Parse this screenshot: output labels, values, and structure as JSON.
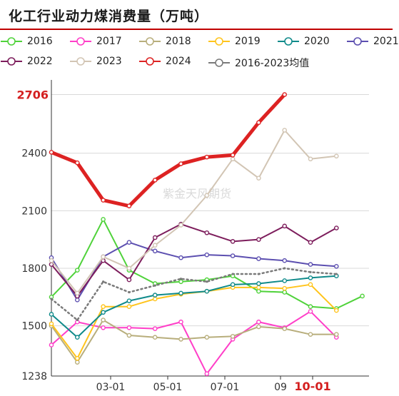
{
  "title": "化工行业动力煤消费量（万吨）",
  "watermark": "紫金天风期货",
  "chart_data": {
    "type": "line",
    "title": "化工行业动力煤消费量（万吨）",
    "ylim": [
      1238,
      2760
    ],
    "y_ticks": [
      1238,
      1500,
      1800,
      2100,
      2400
    ],
    "y_highlight": 2706,
    "x_ticks": [
      "03-01",
      "05-01",
      "07-01",
      "09",
      "10-01"
    ],
    "x_highlight": "10-01",
    "grid": true,
    "legend_position": "top",
    "series": [
      {
        "name": "2016",
        "color": "#4fd23a",
        "width": 2,
        "dotted": false,
        "values": [
          1650,
          1790,
          2055,
          1790,
          1720,
          1730,
          1740,
          1760,
          1680,
          1675,
          1600,
          1590,
          1655
        ]
      },
      {
        "name": "2017",
        "color": "#ff3ec8",
        "width": 2,
        "dotted": false,
        "values": [
          1400,
          1520,
          1490,
          1490,
          1485,
          1520,
          1250,
          1430,
          1520,
          1490,
          1575,
          1440,
          null
        ]
      },
      {
        "name": "2018",
        "color": "#b8ae7c",
        "width": 2,
        "dotted": false,
        "values": [
          1500,
          1310,
          1530,
          1450,
          1440,
          1430,
          1440,
          1445,
          1495,
          1485,
          1455,
          1455,
          null
        ]
      },
      {
        "name": "2019",
        "color": "#ffc41c",
        "width": 2,
        "dotted": false,
        "values": [
          1510,
          1330,
          1600,
          1600,
          1640,
          1665,
          1680,
          1700,
          1700,
          1695,
          1715,
          1580,
          null
        ]
      },
      {
        "name": "2020",
        "color": "#0f8a8a",
        "width": 2,
        "dotted": false,
        "values": [
          1560,
          1440,
          1570,
          1630,
          1660,
          1670,
          1680,
          1715,
          1720,
          1735,
          1750,
          1760,
          null
        ]
      },
      {
        "name": "2021",
        "color": "#5c4fb0",
        "width": 2,
        "dotted": false,
        "values": [
          1855,
          1635,
          1860,
          1935,
          1890,
          1855,
          1870,
          1865,
          1850,
          1840,
          1820,
          1810,
          null
        ]
      },
      {
        "name": "2022",
        "color": "#7d1d5c",
        "width": 2,
        "dotted": false,
        "values": [
          1820,
          1655,
          1840,
          1740,
          1960,
          2030,
          1985,
          1940,
          1950,
          2020,
          1935,
          2010,
          null
        ]
      },
      {
        "name": "2023",
        "color": "#d2c5b4",
        "width": 2,
        "dotted": false,
        "values": [
          1840,
          1670,
          1860,
          1800,
          1920,
          2025,
          2180,
          2370,
          2270,
          2520,
          2370,
          2385,
          null
        ]
      },
      {
        "name": "2024",
        "color": "#dd2222",
        "width": 5,
        "dotted": false,
        "values": [
          2405,
          2350,
          2155,
          2125,
          2260,
          2345,
          2380,
          2390,
          2560,
          2706,
          null,
          null,
          null
        ]
      },
      {
        "name": "2016-2023均值",
        "color": "#7a7a7a",
        "width": 2.5,
        "dotted": true,
        "values": [
          1640,
          1530,
          1730,
          1675,
          1710,
          1745,
          1730,
          1770,
          1770,
          1800,
          1780,
          1770,
          null
        ]
      }
    ]
  }
}
